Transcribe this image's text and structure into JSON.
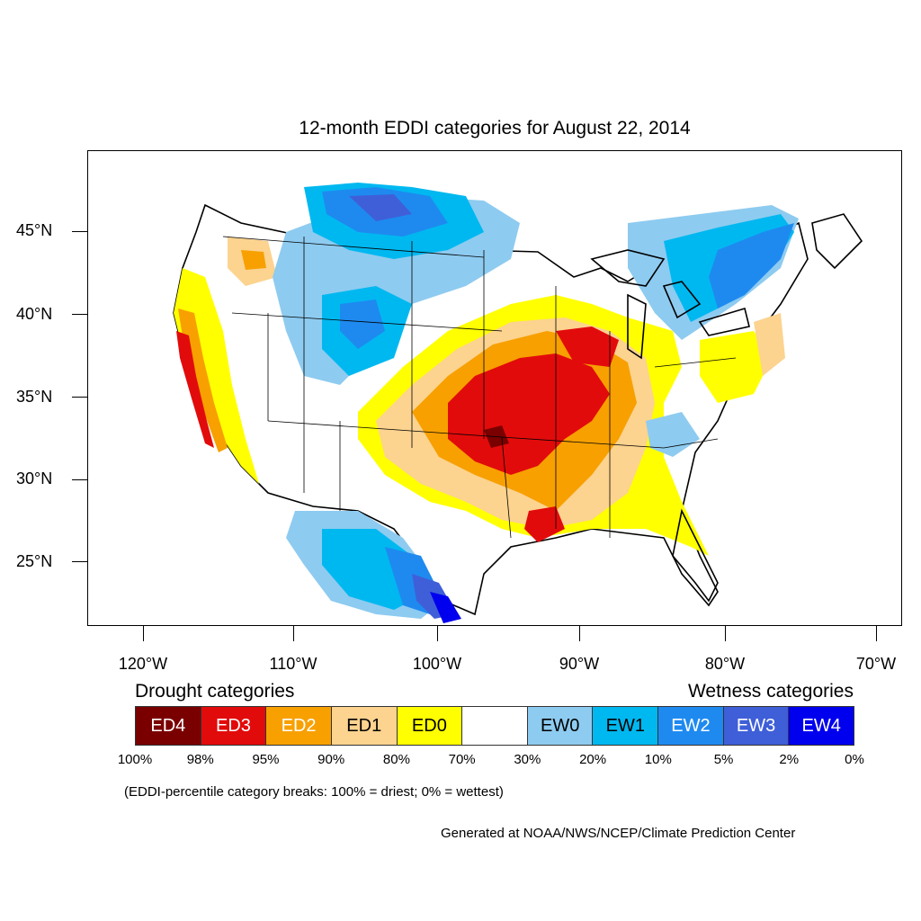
{
  "title": "12-month EDDI categories for August 22, 2014",
  "axes": {
    "y_ticks": [
      "45°N",
      "40°N",
      "35°N",
      "30°N",
      "25°N"
    ],
    "x_ticks": [
      "120°W",
      "110°W",
      "100°W",
      "90°W",
      "80°W",
      "70°W"
    ]
  },
  "legend": {
    "drought_heading": "Drought categories",
    "wetness_heading": "Wetness categories",
    "categories": [
      {
        "label": "ED4",
        "color": "#7a0000",
        "text_color": "#ffffff"
      },
      {
        "label": "ED3",
        "color": "#e20b0b",
        "text_color": "#ffffff"
      },
      {
        "label": "ED2",
        "color": "#f7a000",
        "text_color": "#ffffff"
      },
      {
        "label": "ED1",
        "color": "#fcd38f",
        "text_color": "#000000"
      },
      {
        "label": "ED0",
        "color": "#ffff00",
        "text_color": "#000000"
      },
      {
        "label": "",
        "color": "#ffffff",
        "text_color": "#000000"
      },
      {
        "label": "EW0",
        "color": "#8ecbf0",
        "text_color": "#000000"
      },
      {
        "label": "EW1",
        "color": "#00b8f0",
        "text_color": "#000000"
      },
      {
        "label": "EW2",
        "color": "#1e8af0",
        "text_color": "#ffffff"
      },
      {
        "label": "EW3",
        "color": "#3f5fd8",
        "text_color": "#ffffff"
      },
      {
        "label": "EW4",
        "color": "#0000ee",
        "text_color": "#ffffff"
      }
    ],
    "breaks": [
      "100%",
      "98%",
      "95%",
      "90%",
      "80%",
      "70%",
      "30%",
      "20%",
      "10%",
      "5%",
      "2%",
      "0%"
    ]
  },
  "note": "(EDDI-percentile category breaks: 100% = driest; 0% = wettest)",
  "credit": "Generated at NOAA/NWS/NCEP/Climate Prediction Center"
}
